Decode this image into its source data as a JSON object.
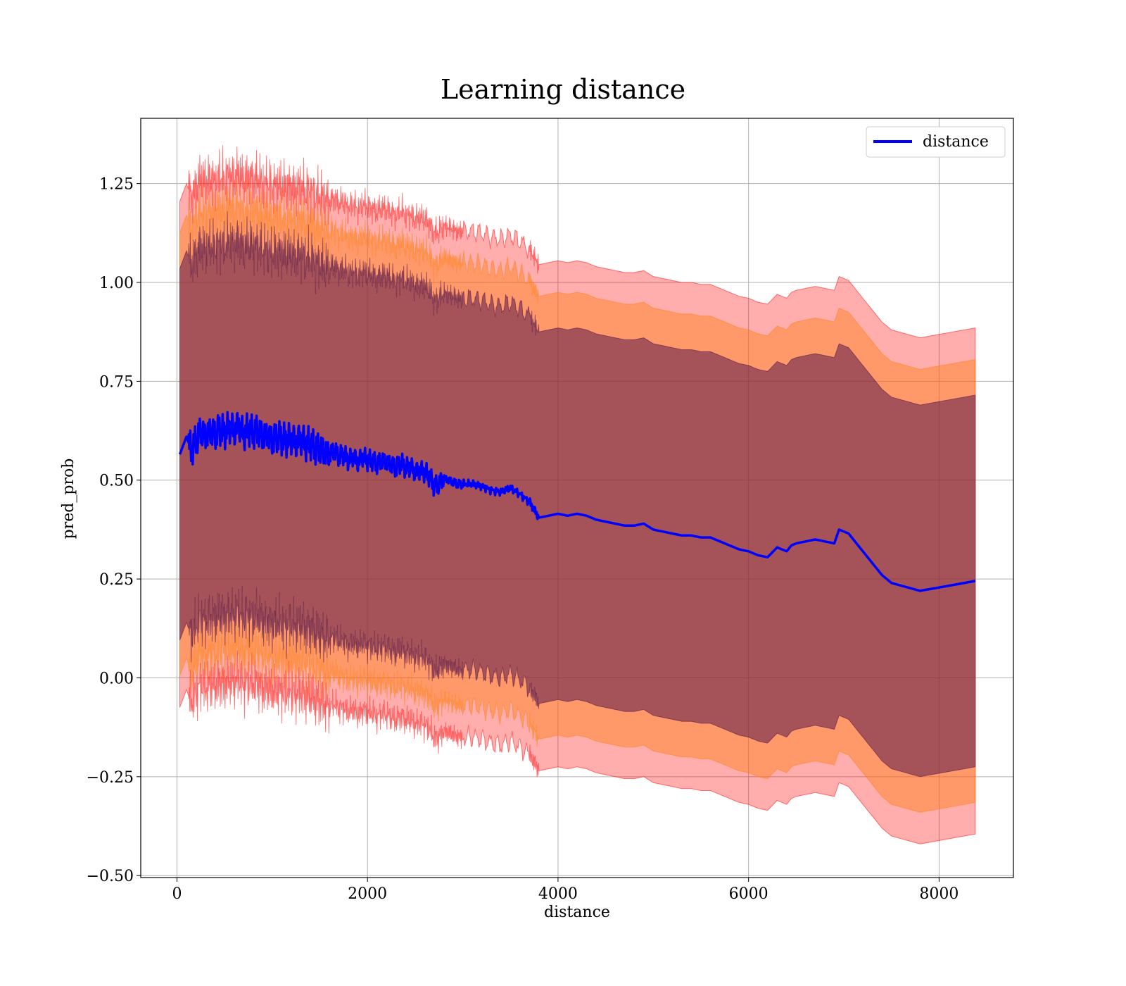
{
  "chart_data": {
    "type": "line",
    "title": "Learning distance",
    "xlabel": "distance",
    "ylabel": "pred_prob",
    "xlim": [
      -380,
      8780
    ],
    "ylim": [
      -0.505,
      1.415
    ],
    "xticks": [
      0,
      2000,
      4000,
      6000,
      8000
    ],
    "xtick_labels": [
      "0",
      "2000",
      "4000",
      "6000",
      "8000"
    ],
    "yticks": [
      -0.5,
      -0.25,
      0.0,
      0.25,
      0.5,
      0.75,
      1.0,
      1.25
    ],
    "ytick_labels": [
      "−0.50",
      "−0.25",
      "0.00",
      "0.25",
      "0.50",
      "0.75",
      "1.00",
      "1.25"
    ],
    "grid": true,
    "legend": {
      "placement": "top-right",
      "entries": [
        "distance"
      ]
    },
    "colors": {
      "line": "#0000ff",
      "band_outer": "#ff0000",
      "band_middle": "#ff7f0e",
      "band_inner": "#4b0d48"
    },
    "series": [
      {
        "name": "distance",
        "x": [
          30,
          100,
          150,
          200,
          250,
          300,
          350,
          400,
          450,
          500,
          550,
          600,
          650,
          700,
          750,
          800,
          850,
          900,
          950,
          1000,
          1050,
          1100,
          1150,
          1200,
          1250,
          1300,
          1350,
          1400,
          1450,
          1500,
          1550,
          1600,
          1650,
          1700,
          1750,
          1800,
          1850,
          1900,
          1950,
          2000,
          2050,
          2100,
          2150,
          2200,
          2250,
          2300,
          2350,
          2400,
          2450,
          2500,
          2550,
          2600,
          2650,
          2700,
          2750,
          2800,
          2850,
          2900,
          2950,
          3000,
          3100,
          3200,
          3300,
          3400,
          3500,
          3600,
          3700,
          3750,
          3800,
          3900,
          4000,
          4100,
          4200,
          4300,
          4400,
          4500,
          4600,
          4700,
          4800,
          4900,
          5000,
          5100,
          5200,
          5300,
          5400,
          5500,
          5600,
          5700,
          5800,
          5900,
          6000,
          6100,
          6200,
          6300,
          6400,
          6450,
          6500,
          6600,
          6700,
          6800,
          6900,
          6950,
          7050,
          7200,
          7400,
          7500,
          7800,
          8380
        ],
        "values": [
          0.565,
          0.61,
          0.575,
          0.6,
          0.625,
          0.61,
          0.625,
          0.615,
          0.63,
          0.62,
          0.635,
          0.625,
          0.64,
          0.615,
          0.63,
          0.62,
          0.625,
          0.61,
          0.615,
          0.6,
          0.61,
          0.605,
          0.6,
          0.605,
          0.595,
          0.605,
          0.59,
          0.595,
          0.58,
          0.58,
          0.57,
          0.565,
          0.575,
          0.56,
          0.565,
          0.55,
          0.56,
          0.545,
          0.56,
          0.55,
          0.55,
          0.54,
          0.55,
          0.545,
          0.54,
          0.53,
          0.545,
          0.53,
          0.535,
          0.52,
          0.525,
          0.52,
          0.51,
          0.485,
          0.49,
          0.505,
          0.5,
          0.495,
          0.49,
          0.49,
          0.49,
          0.485,
          0.475,
          0.47,
          0.48,
          0.465,
          0.445,
          0.425,
          0.405,
          0.41,
          0.415,
          0.41,
          0.415,
          0.41,
          0.4,
          0.395,
          0.39,
          0.385,
          0.385,
          0.39,
          0.375,
          0.37,
          0.365,
          0.36,
          0.36,
          0.355,
          0.355,
          0.345,
          0.335,
          0.325,
          0.32,
          0.31,
          0.305,
          0.33,
          0.32,
          0.335,
          0.34,
          0.345,
          0.35,
          0.345,
          0.34,
          0.375,
          0.365,
          0.32,
          0.26,
          0.24,
          0.22,
          0.245
        ]
      }
    ],
    "bands": [
      {
        "width": 0.64
      },
      {
        "width": 0.56
      },
      {
        "width": 0.47
      }
    ]
  }
}
